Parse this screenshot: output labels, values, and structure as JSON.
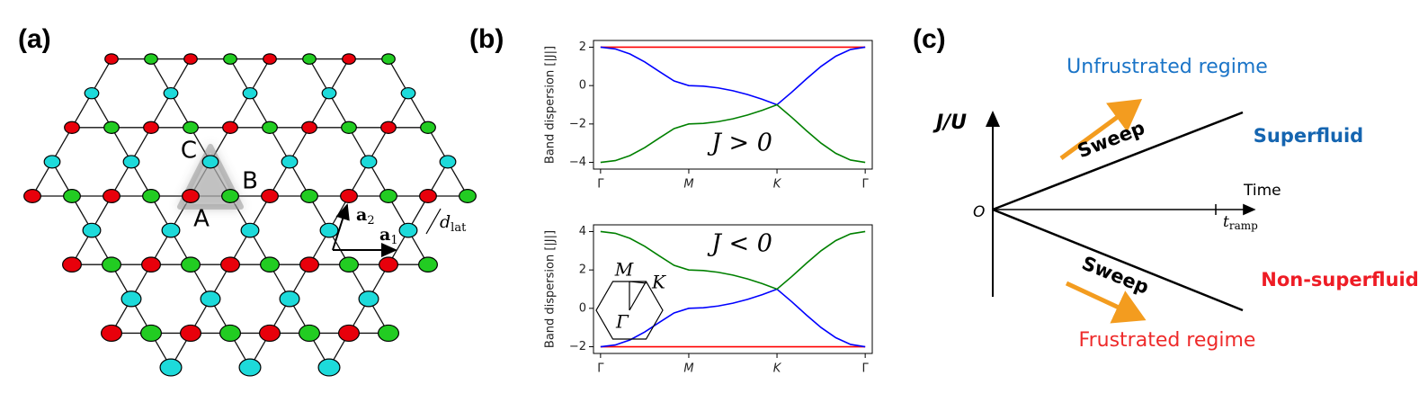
{
  "panel_labels": [
    "(a)",
    "(b)",
    "(c)"
  ],
  "lattice": {
    "sites": [
      "C",
      "B",
      "A"
    ],
    "vectors": [
      {
        "base": "a",
        "sub": "2"
      },
      {
        "base": "a",
        "sub": "1"
      }
    ],
    "spacing": {
      "base": "d",
      "sub": "lat"
    }
  },
  "chart_data": [
    {
      "type": "line",
      "ylabel": "Band dispersion [|J|]",
      "annotation": "J > 0",
      "x": [
        0,
        0.1667,
        0.3333,
        0.5,
        0.6667,
        0.8333,
        1,
        1.1667,
        1.3333,
        1.5,
        1.6667,
        1.8333,
        2,
        2.1667,
        2.3333,
        2.5,
        2.6667,
        2.8333,
        3
      ],
      "xlim": [
        -0.08,
        3.08
      ],
      "xticks": [
        {
          "value": 0,
          "label": "Γ"
        },
        {
          "value": 1,
          "label": "M"
        },
        {
          "value": 2,
          "label": "K"
        },
        {
          "value": 3,
          "label": "Γ"
        }
      ],
      "ylim": [
        -4.35,
        2.35
      ],
      "yticks": [
        {
          "value": -4,
          "label": "−4"
        },
        {
          "value": -2,
          "label": "−2"
        },
        0,
        2
      ],
      "series": [
        {
          "color": "#ff0000",
          "values": [
            2,
            2,
            2,
            2,
            2,
            2,
            2,
            2,
            2,
            2,
            2,
            2,
            2,
            2,
            2,
            2,
            2,
            2,
            2
          ]
        },
        {
          "color": "#0000ff",
          "values": [
            2,
            1.909,
            1.646,
            1.236,
            0.732,
            0.239,
            0,
            -0.03,
            -0.121,
            -0.268,
            -0.468,
            -0.714,
            -1,
            -0.347,
            0.347,
            1,
            1.532,
            1.879,
            2
          ]
        },
        {
          "color": "#008000",
          "values": [
            -4,
            -3.909,
            -3.646,
            -3.236,
            -2.732,
            -2.239,
            -2,
            -1.97,
            -1.879,
            -1.732,
            -1.532,
            -1.286,
            -1,
            -1.653,
            -2.347,
            -3,
            -3.532,
            -3.879,
            -4
          ]
        }
      ]
    },
    {
      "type": "line",
      "ylabel": "Band dispersion [|J|]",
      "annotation": "J < 0",
      "inset_labels": [
        "M",
        "K",
        "Γ"
      ],
      "x": [
        0,
        0.1667,
        0.3333,
        0.5,
        0.6667,
        0.8333,
        1,
        1.1667,
        1.3333,
        1.5,
        1.6667,
        1.8333,
        2,
        2.1667,
        2.3333,
        2.5,
        2.6667,
        2.8333,
        3
      ],
      "xlim": [
        -0.08,
        3.08
      ],
      "xticks": [
        {
          "value": 0,
          "label": "Γ"
        },
        {
          "value": 1,
          "label": "M"
        },
        {
          "value": 2,
          "label": "K"
        },
        {
          "value": 3,
          "label": "Γ"
        }
      ],
      "ylim": [
        -2.35,
        4.35
      ],
      "yticks": [
        {
          "value": -2,
          "label": "−2"
        },
        0,
        2,
        4
      ],
      "series": [
        {
          "color": "#ff0000",
          "values": [
            -2,
            -2,
            -2,
            -2,
            -2,
            -2,
            -2,
            -2,
            -2,
            -2,
            -2,
            -2,
            -2,
            -2,
            -2,
            -2,
            -2,
            -2,
            -2
          ]
        },
        {
          "color": "#0000ff",
          "values": [
            -2,
            -1.909,
            -1.646,
            -1.236,
            -0.732,
            -0.239,
            0,
            0.03,
            0.121,
            0.268,
            0.468,
            0.714,
            1,
            0.347,
            -0.347,
            -1,
            -1.532,
            -1.879,
            -2
          ]
        },
        {
          "color": "#008000",
          "values": [
            4,
            3.909,
            3.646,
            3.236,
            2.732,
            2.239,
            2,
            1.97,
            1.879,
            1.732,
            1.532,
            1.286,
            1,
            1.653,
            2.347,
            3,
            3.532,
            3.879,
            4
          ]
        }
      ]
    }
  ],
  "diagram": {
    "top_regime": "Unfrustrated regime",
    "y_axis": "J/U",
    "x_axis": "Time",
    "origin": "O",
    "ramp": {
      "base": "t",
      "sub": "ramp"
    },
    "sweeps": [
      "Sweep",
      "Sweep"
    ],
    "top_phase": "Superfluid",
    "bottom_phase": "Non-superfluid",
    "bottom_regime": "Frustrated regime"
  }
}
